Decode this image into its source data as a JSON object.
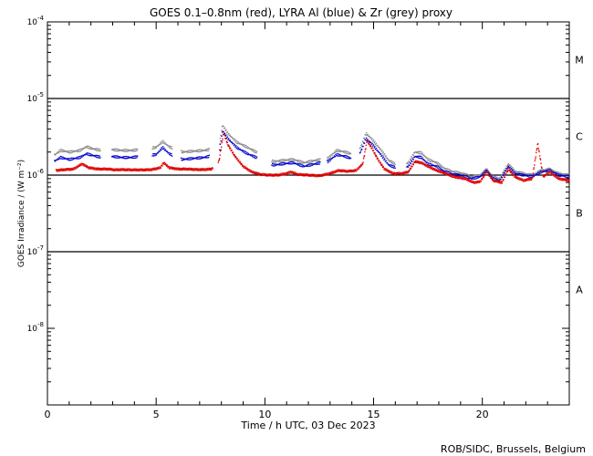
{
  "chart_data": {
    "type": "scatter",
    "title": "GOES 0.1–0.8nm (red), LYRA Al (blue) & Zr (grey) proxy",
    "xlabel": "Time / h UTC, 03 Dec 2023",
    "ylabel": "GOES Irradiance / (W m⁻²)",
    "credit": "ROB/SIDC, Brussels, Belgium",
    "xlim": [
      0,
      24
    ],
    "ylim": [
      1e-09,
      0.0001
    ],
    "yscale": "log",
    "x_ticks": [
      0,
      5,
      10,
      15,
      20
    ],
    "y_ticks": [
      {
        "value": 1e-08,
        "label": "10",
        "exp": "-8"
      },
      {
        "value": 1e-07,
        "label": "10",
        "exp": "-7"
      },
      {
        "value": 1e-06,
        "label": "10",
        "exp": "-6"
      },
      {
        "value": 1e-05,
        "label": "10",
        "exp": "-5"
      },
      {
        "value": 0.0001,
        "label": "10",
        "exp": "-4"
      }
    ],
    "flare_class_lines": [
      1e-07,
      1e-06,
      1e-05
    ],
    "flare_classes": [
      {
        "label": "A",
        "value": 3.2e-08
      },
      {
        "label": "B",
        "value": 3.2e-07
      },
      {
        "label": "C",
        "value": 3.2e-06
      },
      {
        "label": "M",
        "value": 3.2e-05
      }
    ],
    "colors": {
      "goes": "#dd0000",
      "lyra_al": "#0000cc",
      "lyra_zr": "#888888"
    },
    "series": [
      {
        "key": "goes",
        "points": [
          [
            0.4,
            1.15e-06
          ],
          [
            0.8,
            1.18e-06
          ],
          [
            1.2,
            1.2e-06
          ],
          [
            1.6,
            1.4e-06
          ],
          [
            1.9,
            1.25e-06
          ],
          [
            2.3,
            1.2e-06
          ],
          [
            2.8,
            1.2e-06
          ],
          [
            3.1,
            1.17e-06
          ],
          [
            3.4,
            1.18e-06
          ],
          [
            3.9,
            1.17e-06
          ],
          [
            4.4,
            1.17e-06
          ],
          [
            4.8,
            1.18e-06
          ],
          [
            5.2,
            1.25e-06
          ],
          [
            5.35,
            1.45e-06
          ],
          [
            5.6,
            1.25e-06
          ],
          [
            6.0,
            1.2e-06
          ],
          [
            6.4,
            1.2e-06
          ],
          [
            6.9,
            1.18e-06
          ],
          [
            7.2,
            1.18e-06
          ],
          [
            7.55,
            1.2e-06
          ],
          [
            7.9,
            1.55e-06
          ],
          [
            8.1,
            3.6e-06
          ],
          [
            8.3,
            2.5e-06
          ],
          [
            8.6,
            1.8e-06
          ],
          [
            9.0,
            1.3e-06
          ],
          [
            9.4,
            1.1e-06
          ],
          [
            9.8,
            1.02e-06
          ],
          [
            10.2,
            1e-06
          ],
          [
            10.6,
            1e-06
          ],
          [
            11.0,
            1.05e-06
          ],
          [
            11.2,
            1.1e-06
          ],
          [
            11.5,
            1.02e-06
          ],
          [
            12.0,
            1e-06
          ],
          [
            12.5,
            9.8e-07
          ],
          [
            13.0,
            1.05e-06
          ],
          [
            13.4,
            1.15e-06
          ],
          [
            13.8,
            1.12e-06
          ],
          [
            14.2,
            1.15e-06
          ],
          [
            14.5,
            1.4e-06
          ],
          [
            14.7,
            2.8e-06
          ],
          [
            14.9,
            2.3e-06
          ],
          [
            15.2,
            1.6e-06
          ],
          [
            15.5,
            1.2e-06
          ],
          [
            15.9,
            1.05e-06
          ],
          [
            16.3,
            1.05e-06
          ],
          [
            16.6,
            1.1e-06
          ],
          [
            16.9,
            1.5e-06
          ],
          [
            17.2,
            1.45e-06
          ],
          [
            17.5,
            1.3e-06
          ],
          [
            17.9,
            1.15e-06
          ],
          [
            18.3,
            1.05e-06
          ],
          [
            18.7,
            9.5e-07
          ],
          [
            19.2,
            9e-07
          ],
          [
            19.6,
            8e-07
          ],
          [
            19.9,
            8.2e-07
          ],
          [
            20.2,
            1.1e-06
          ],
          [
            20.5,
            8.5e-07
          ],
          [
            20.9,
            8e-07
          ],
          [
            21.2,
            1.2e-06
          ],
          [
            21.5,
            9.5e-07
          ],
          [
            21.9,
            8.5e-07
          ],
          [
            22.3,
            9e-07
          ],
          [
            22.55,
            2.6e-06
          ],
          [
            22.8,
            9.5e-07
          ],
          [
            23.1,
            1.1e-06
          ],
          [
            23.5,
            9e-07
          ],
          [
            24.0,
            8.5e-07
          ]
        ]
      },
      {
        "key": "lyra_al",
        "points": [
          [
            0.3,
            1.5e-06
          ],
          [
            0.6,
            1.7e-06
          ],
          [
            1.0,
            1.6e-06
          ],
          [
            1.5,
            1.7e-06
          ],
          [
            1.8,
            1.9e-06
          ],
          [
            2.1,
            1.8e-06
          ],
          [
            2.5,
            1.7e-06
          ],
          [
            3.0,
            1.75e-06
          ],
          [
            3.4,
            1.7e-06
          ],
          [
            3.9,
            1.7e-06
          ],
          [
            4.5,
            1.8e-06
          ],
          [
            5.0,
            1.85e-06
          ],
          [
            5.3,
            2.3e-06
          ],
          [
            5.6,
            1.9e-06
          ],
          [
            6.2,
            1.6e-06
          ],
          [
            6.7,
            1.65e-06
          ],
          [
            7.2,
            1.7e-06
          ],
          [
            7.6,
            1.8e-06
          ],
          [
            7.9,
            2e-06
          ],
          [
            8.05,
            3.8e-06
          ],
          [
            8.3,
            3e-06
          ],
          [
            8.7,
            2.3e-06
          ],
          [
            9.2,
            1.9e-06
          ],
          [
            9.6,
            1.7e-06
          ],
          [
            10.4,
            1.35e-06
          ],
          [
            10.8,
            1.4e-06
          ],
          [
            11.3,
            1.45e-06
          ],
          [
            11.8,
            1.3e-06
          ],
          [
            12.3,
            1.4e-06
          ],
          [
            12.9,
            1.5e-06
          ],
          [
            13.3,
            1.85e-06
          ],
          [
            13.7,
            1.75e-06
          ],
          [
            14.1,
            1.6e-06
          ],
          [
            14.4,
            2e-06
          ],
          [
            14.65,
            3e-06
          ],
          [
            14.9,
            2.6e-06
          ],
          [
            15.3,
            1.9e-06
          ],
          [
            15.7,
            1.35e-06
          ],
          [
            16.2,
            1.2e-06
          ],
          [
            16.6,
            1.3e-06
          ],
          [
            16.9,
            1.75e-06
          ],
          [
            17.2,
            1.7e-06
          ],
          [
            17.5,
            1.4e-06
          ],
          [
            17.9,
            1.3e-06
          ],
          [
            18.3,
            1.1e-06
          ],
          [
            18.7,
            1.02e-06
          ],
          [
            19.1,
            9.8e-07
          ],
          [
            19.5,
            9e-07
          ],
          [
            19.9,
            9.5e-07
          ],
          [
            20.2,
            1.15e-06
          ],
          [
            20.5,
            9e-07
          ],
          [
            20.8,
            8.5e-07
          ],
          [
            21.2,
            1.3e-06
          ],
          [
            21.5,
            1.05e-06
          ],
          [
            21.9,
            1e-06
          ],
          [
            22.3,
            9.5e-07
          ],
          [
            22.7,
            1.1e-06
          ],
          [
            23.1,
            1.15e-06
          ],
          [
            23.5,
            1e-06
          ],
          [
            24.0,
            9.5e-07
          ]
        ]
      },
      {
        "key": "lyra_zr",
        "points": [
          [
            0.3,
            1.8e-06
          ],
          [
            0.6,
            2.1e-06
          ],
          [
            1.0,
            2e-06
          ],
          [
            1.5,
            2.1e-06
          ],
          [
            1.8,
            2.35e-06
          ],
          [
            2.1,
            2.2e-06
          ],
          [
            2.5,
            2.1e-06
          ],
          [
            3.0,
            2.15e-06
          ],
          [
            3.4,
            2.1e-06
          ],
          [
            3.9,
            2.1e-06
          ],
          [
            4.5,
            2.2e-06
          ],
          [
            5.0,
            2.3e-06
          ],
          [
            5.3,
            2.75e-06
          ],
          [
            5.6,
            2.35e-06
          ],
          [
            6.2,
            2e-06
          ],
          [
            6.7,
            2.05e-06
          ],
          [
            7.2,
            2.1e-06
          ],
          [
            7.6,
            2.2e-06
          ],
          [
            7.9,
            2.4e-06
          ],
          [
            8.05,
            4.5e-06
          ],
          [
            8.3,
            3.5e-06
          ],
          [
            8.7,
            2.7e-06
          ],
          [
            9.2,
            2.3e-06
          ],
          [
            9.6,
            2e-06
          ],
          [
            10.4,
            1.5e-06
          ],
          [
            10.8,
            1.55e-06
          ],
          [
            11.3,
            1.6e-06
          ],
          [
            11.8,
            1.45e-06
          ],
          [
            12.3,
            1.55e-06
          ],
          [
            12.9,
            1.65e-06
          ],
          [
            13.3,
            2.1e-06
          ],
          [
            13.7,
            2e-06
          ],
          [
            14.1,
            1.85e-06
          ],
          [
            14.4,
            2.3e-06
          ],
          [
            14.65,
            3.5e-06
          ],
          [
            14.9,
            3e-06
          ],
          [
            15.3,
            2.2e-06
          ],
          [
            15.7,
            1.55e-06
          ],
          [
            16.2,
            1.3e-06
          ],
          [
            16.6,
            1.45e-06
          ],
          [
            16.9,
            2e-06
          ],
          [
            17.2,
            1.95e-06
          ],
          [
            17.5,
            1.6e-06
          ],
          [
            17.9,
            1.45e-06
          ],
          [
            18.3,
            1.2e-06
          ],
          [
            18.7,
            1.1e-06
          ],
          [
            19.1,
            1.05e-06
          ],
          [
            19.5,
            9.5e-07
          ],
          [
            19.9,
            1e-06
          ],
          [
            20.2,
            1.2e-06
          ],
          [
            20.5,
            9.5e-07
          ],
          [
            20.8,
            9e-07
          ],
          [
            21.2,
            1.4e-06
          ],
          [
            21.5,
            1.12e-06
          ],
          [
            21.9,
            1.05e-06
          ],
          [
            22.3,
            1e-06
          ],
          [
            22.7,
            1.15e-06
          ],
          [
            23.1,
            1.2e-06
          ],
          [
            23.5,
            1.05e-06
          ],
          [
            24.0,
            1e-06
          ]
        ]
      }
    ],
    "gaps": [
      [
        0.0,
        0.3
      ],
      [
        2.45,
        2.95
      ],
      [
        4.15,
        4.8
      ],
      [
        5.75,
        6.15
      ],
      [
        7.45,
        7.9
      ],
      [
        9.65,
        10.3
      ],
      [
        12.55,
        12.85
      ],
      [
        13.95,
        14.35
      ],
      [
        16.0,
        16.5
      ]
    ]
  }
}
